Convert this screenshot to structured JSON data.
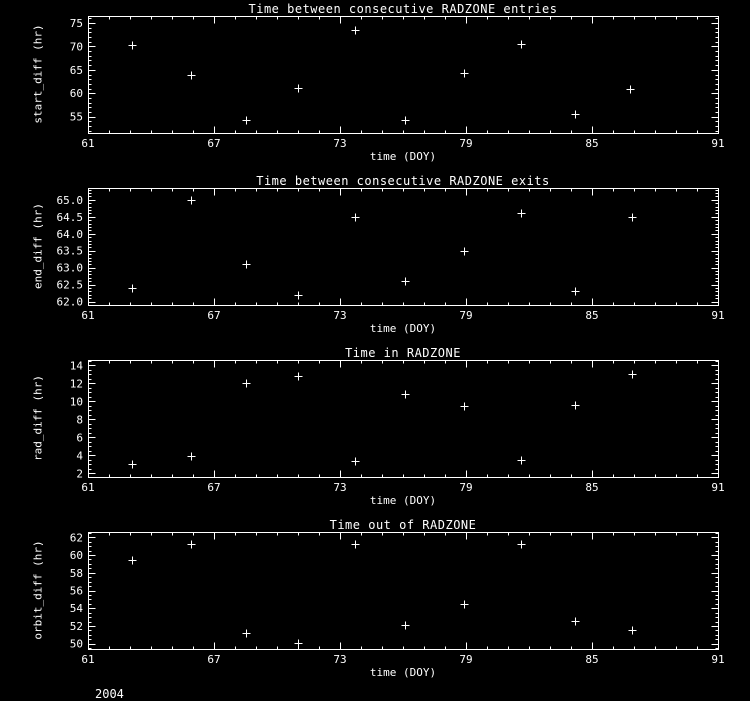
{
  "colors": {
    "background": "#000000",
    "foreground": "#ffffff"
  },
  "footer": {
    "year": "2004"
  },
  "chart_data": [
    {
      "type": "scatter",
      "title": "Time between consecutive RADZONE entries",
      "xlabel": "time (DOY)",
      "ylabel": "start_diff (hr)",
      "marker": "plus",
      "legend": "none",
      "grid": false,
      "xlim": [
        61,
        91
      ],
      "xticks": [
        61,
        67,
        73,
        79,
        85,
        91
      ],
      "xtick_labels": [
        "61",
        "67",
        "73",
        "79",
        "85",
        "91"
      ],
      "x_minor_step": 1,
      "ylim": [
        51.5,
        76.5
      ],
      "yticks": [
        55,
        60,
        65,
        70,
        75
      ],
      "ytick_labels": [
        "55",
        "60",
        "65",
        "70",
        "75"
      ],
      "y_minor_step": 1,
      "x": [
        63.1,
        65.9,
        68.5,
        71.0,
        73.7,
        76.1,
        78.9,
        81.6,
        84.2,
        86.8
      ],
      "y": [
        70.4,
        64.0,
        54.2,
        61.2,
        73.5,
        54.2,
        64.3,
        70.6,
        55.5,
        60.8
      ]
    },
    {
      "type": "scatter",
      "title": "Time between consecutive RADZONE exits",
      "xlabel": "time (DOY)",
      "ylabel": "end_diff (hr)",
      "marker": "plus",
      "legend": "none",
      "grid": false,
      "xlim": [
        61,
        91
      ],
      "xticks": [
        61,
        67,
        73,
        79,
        85,
        91
      ],
      "xtick_labels": [
        "61",
        "67",
        "73",
        "79",
        "85",
        "91"
      ],
      "x_minor_step": 1,
      "ylim": [
        61.9,
        65.35
      ],
      "yticks": [
        62.0,
        62.5,
        63.0,
        63.5,
        64.0,
        64.5,
        65.0
      ],
      "ytick_labels": [
        "62.0",
        "62.5",
        "63.0",
        "63.5",
        "64.0",
        "64.5",
        "65.0"
      ],
      "y_minor_step": 0.1,
      "x": [
        63.1,
        65.9,
        68.5,
        71.0,
        73.7,
        76.1,
        78.9,
        81.6,
        84.2,
        86.9
      ],
      "y": [
        62.4,
        65.0,
        63.1,
        62.2,
        64.5,
        62.6,
        63.5,
        64.6,
        62.3,
        64.5
      ]
    },
    {
      "type": "scatter",
      "title": "Time in RADZONE",
      "xlabel": "time (DOY)",
      "ylabel": "rad_diff (hr)",
      "marker": "plus",
      "legend": "none",
      "grid": false,
      "xlim": [
        61,
        91
      ],
      "xticks": [
        61,
        67,
        73,
        79,
        85,
        91
      ],
      "xtick_labels": [
        "61",
        "67",
        "73",
        "79",
        "85",
        "91"
      ],
      "x_minor_step": 1,
      "ylim": [
        1.6,
        14.6
      ],
      "yticks": [
        2,
        4,
        6,
        8,
        10,
        12,
        14
      ],
      "ytick_labels": [
        "2",
        "4",
        "6",
        "8",
        "10",
        "12",
        "14"
      ],
      "y_minor_step": 0.5,
      "x": [
        63.1,
        65.9,
        68.5,
        71.0,
        73.7,
        76.1,
        78.9,
        81.6,
        84.2,
        86.9
      ],
      "y": [
        3.0,
        3.9,
        12.0,
        12.8,
        3.4,
        10.8,
        9.5,
        3.5,
        9.6,
        13.0
      ]
    },
    {
      "type": "scatter",
      "title": "Time out of RADZONE",
      "xlabel": "time (DOY)",
      "ylabel": "orbit_diff (hr)",
      "marker": "plus",
      "legend": "none",
      "grid": false,
      "xlim": [
        61,
        91
      ],
      "xticks": [
        61,
        67,
        73,
        79,
        85,
        91
      ],
      "xtick_labels": [
        "61",
        "67",
        "73",
        "79",
        "85",
        "91"
      ],
      "x_minor_step": 1,
      "ylim": [
        49.4,
        62.6
      ],
      "yticks": [
        50,
        52,
        54,
        56,
        58,
        60,
        62
      ],
      "ytick_labels": [
        "50",
        "52",
        "54",
        "56",
        "58",
        "60",
        "62"
      ],
      "y_minor_step": 0.5,
      "x": [
        63.1,
        65.9,
        68.5,
        71.0,
        73.7,
        76.1,
        78.9,
        81.6,
        84.2,
        86.9
      ],
      "y": [
        59.4,
        61.2,
        51.2,
        50.1,
        61.2,
        52.1,
        54.5,
        61.2,
        52.6,
        51.5
      ]
    }
  ]
}
